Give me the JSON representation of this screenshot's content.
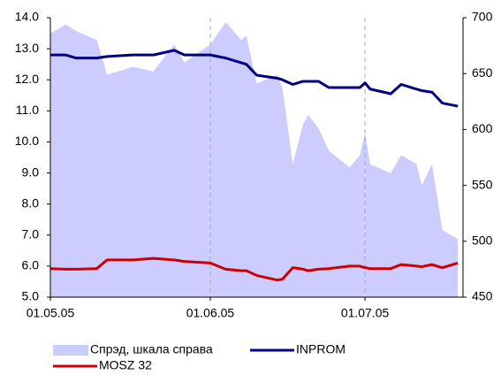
{
  "chart_data": {
    "type": "line",
    "x": [
      "01.05.05",
      "04.05.05",
      "06.05.05",
      "10.05.05",
      "12.05.05",
      "17.05.05",
      "21.05.05",
      "25.05.05",
      "27.05.05",
      "01.06.05",
      "04.06.05",
      "07.06.05",
      "08.06.05",
      "10.06.05",
      "14.06.05",
      "15.06.05",
      "17.06.05",
      "19.06.05",
      "20.06.05",
      "22.06.05",
      "24.06.05",
      "28.06.05",
      "30.06.05",
      "01.07.05",
      "02.07.05",
      "06.07.05",
      "08.07.05",
      "11.07.05",
      "12.07.05",
      "14.07.05",
      "16.07.05",
      "19.07.05"
    ],
    "series": [
      {
        "name": "Спрэд, шкала справа",
        "type": "area",
        "axis": "y2",
        "color": "#ccccff",
        "values": [
          686,
          694,
          688,
          680,
          649,
          656,
          652,
          676,
          660,
          676,
          696,
          680,
          684,
          641,
          649,
          637,
          569,
          605,
          613,
          601,
          581,
          566,
          577,
          597,
          569,
          561,
          577,
          569,
          550,
          569,
          510,
          502
        ]
      },
      {
        "name": "INPROM",
        "color": "#000080",
        "values": [
          12.8,
          12.8,
          12.7,
          12.7,
          12.75,
          12.8,
          12.8,
          12.95,
          12.8,
          12.8,
          12.7,
          12.55,
          12.5,
          12.15,
          12.05,
          12.0,
          11.85,
          11.95,
          11.95,
          11.95,
          11.75,
          11.75,
          11.75,
          11.9,
          11.7,
          11.55,
          11.85,
          11.7,
          11.65,
          11.6,
          11.25,
          11.15
        ]
      },
      {
        "name": "MOSZ 32",
        "color": "#cc0000",
        "values": [
          5.92,
          5.9,
          5.9,
          5.92,
          6.2,
          6.2,
          6.25,
          6.2,
          6.15,
          6.1,
          5.9,
          5.85,
          5.85,
          5.7,
          5.55,
          5.58,
          5.95,
          5.9,
          5.85,
          5.9,
          5.92,
          6.0,
          6.0,
          5.95,
          5.92,
          5.92,
          6.05,
          6.0,
          5.98,
          6.05,
          5.95,
          6.1
        ]
      }
    ],
    "xlim": [
      "01.05.05",
      "20.07.05"
    ],
    "xticks": [
      "01.05.05",
      "01.06.05",
      "01.07.05"
    ],
    "ylim": [
      5,
      14
    ],
    "yticks": [
      {
        "value": 5,
        "label": "5.0"
      },
      {
        "value": 6,
        "label": "6.0"
      },
      {
        "value": 7,
        "label": "7.0"
      },
      {
        "value": 8,
        "label": "8.0"
      },
      {
        "value": 9,
        "label": "9.0"
      },
      {
        "value": 10,
        "label": "10.0"
      },
      {
        "value": 11,
        "label": "11.0"
      },
      {
        "value": 12,
        "label": "12.0"
      },
      {
        "value": 13,
        "label": "13.0"
      },
      {
        "value": 14,
        "label": "14.0"
      }
    ],
    "y2lim": [
      450,
      700
    ],
    "y2ticks": [
      450,
      500,
      550,
      600,
      650,
      700
    ],
    "grid": "x"
  }
}
